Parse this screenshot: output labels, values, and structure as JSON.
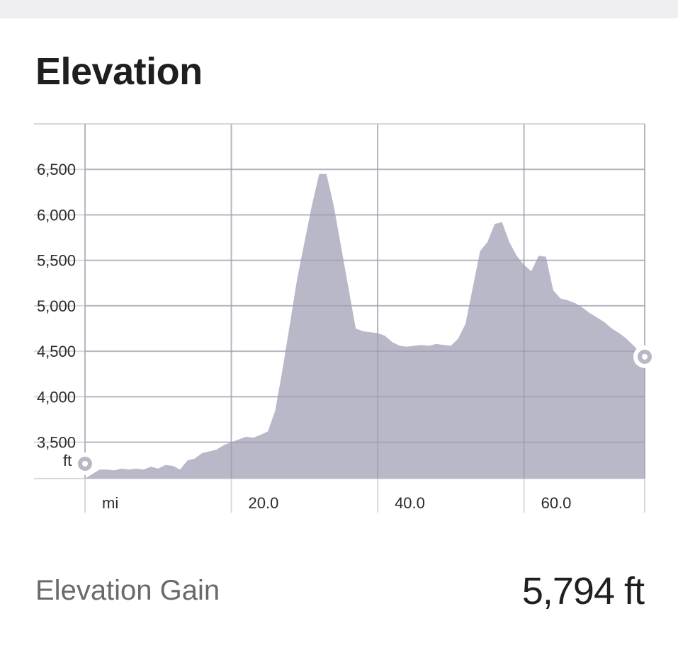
{
  "header": {
    "title": "Elevation"
  },
  "summary": {
    "label": "Elevation Gain",
    "value": "5,794 ft"
  },
  "colors": {
    "area": "#b9b8c8",
    "grid": "#d8d8dc",
    "text": "#1f1f22",
    "marker_ring": "#b9b8c8"
  },
  "chart_data": {
    "type": "area",
    "title": "Elevation",
    "xlabel": "mi",
    "ylabel": "ft",
    "xlim": [
      0,
      76.5
    ],
    "ylim": [
      3100,
      7000
    ],
    "y_ticks": [
      {
        "value": 3500,
        "label": "3,500"
      },
      {
        "value": 4000,
        "label": "4,000"
      },
      {
        "value": 4500,
        "label": "4,500"
      },
      {
        "value": 5000,
        "label": "5,000"
      },
      {
        "value": 5500,
        "label": "5,500"
      },
      {
        "value": 6000,
        "label": "6,000"
      },
      {
        "value": 6500,
        "label": "6,500"
      }
    ],
    "x_ticks": [
      {
        "value": 0,
        "label": "mi"
      },
      {
        "value": 20,
        "label": "20.0"
      },
      {
        "value": 40,
        "label": "40.0"
      },
      {
        "value": 60,
        "label": "60.0"
      }
    ],
    "x_grid": [
      0,
      20,
      40,
      60,
      76.5
    ],
    "x": [
      0,
      1,
      2,
      3,
      4,
      5,
      6,
      7,
      8,
      9,
      10,
      11,
      12,
      13,
      14,
      15,
      16,
      17,
      18,
      19,
      20,
      21,
      22,
      23,
      24,
      25,
      26,
      27,
      28,
      29,
      30,
      31,
      32,
      33,
      34,
      35,
      36,
      37,
      38,
      39,
      40,
      41,
      42,
      43,
      44,
      45,
      46,
      47,
      48,
      49,
      50,
      51,
      52,
      53,
      54,
      55,
      56,
      57,
      58,
      59,
      60,
      61,
      62,
      63,
      64,
      65,
      66,
      67,
      68,
      69,
      70,
      71,
      72,
      73,
      74,
      75,
      76.5
    ],
    "series": [
      {
        "values": [
          3100,
          3150,
          3200,
          3200,
          3190,
          3210,
          3200,
          3210,
          3200,
          3230,
          3210,
          3250,
          3240,
          3200,
          3300,
          3320,
          3380,
          3400,
          3420,
          3470,
          3500,
          3530,
          3560,
          3550,
          3580,
          3620,
          3850,
          4300,
          4800,
          5300,
          5700,
          6100,
          6450,
          6450,
          6100,
          5650,
          5200,
          4750,
          4720,
          4710,
          4700,
          4670,
          4600,
          4560,
          4550,
          4560,
          4570,
          4560,
          4580,
          4570,
          4560,
          4640,
          4800,
          5200,
          5600,
          5700,
          5900,
          5920,
          5700,
          5550,
          5450,
          5380,
          5550,
          5540,
          5170,
          5080,
          5060,
          5030,
          4980,
          4920,
          4870,
          4820,
          4750,
          4700,
          4640,
          4560,
          4440
        ]
      }
    ]
  }
}
